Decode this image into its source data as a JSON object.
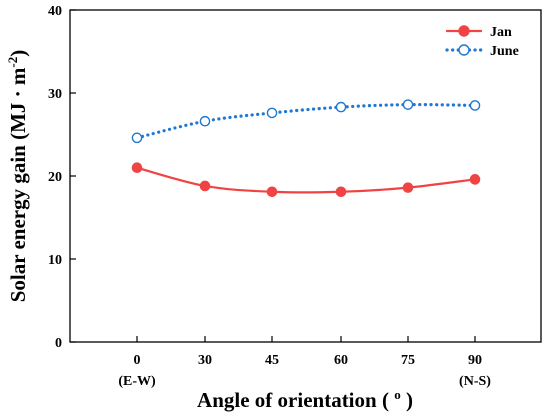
{
  "chart_data": {
    "type": "line",
    "categories": [
      "0",
      "30",
      "45",
      "60",
      "75",
      "90"
    ],
    "category_sublabels": [
      "(E-W)",
      "",
      "",
      "",
      "",
      "(N-S)"
    ],
    "series": [
      {
        "name": "Jan",
        "values": [
          21.0,
          18.8,
          18.1,
          18.1,
          18.6,
          19.6
        ],
        "color": "#f04444",
        "line_style": "solid",
        "marker": "filled-circle"
      },
      {
        "name": "June",
        "values": [
          24.6,
          26.6,
          27.6,
          28.3,
          28.6,
          28.5
        ],
        "color": "#1f78d1",
        "line_style": "dotted",
        "marker": "open-circle"
      }
    ],
    "xlabel": "Angle of orientation ( ",
    "xlabel_superscript": "o",
    "xlabel_suffix": " )",
    "ylabel": "Solar energy gain (MJ · m",
    "ylabel_superscript": "-2",
    "ylabel_suffix": ")",
    "yticks": [
      0,
      10,
      20,
      30,
      40
    ],
    "ylim": [
      0,
      40
    ],
    "grid": false,
    "legend_position": "top-right"
  }
}
